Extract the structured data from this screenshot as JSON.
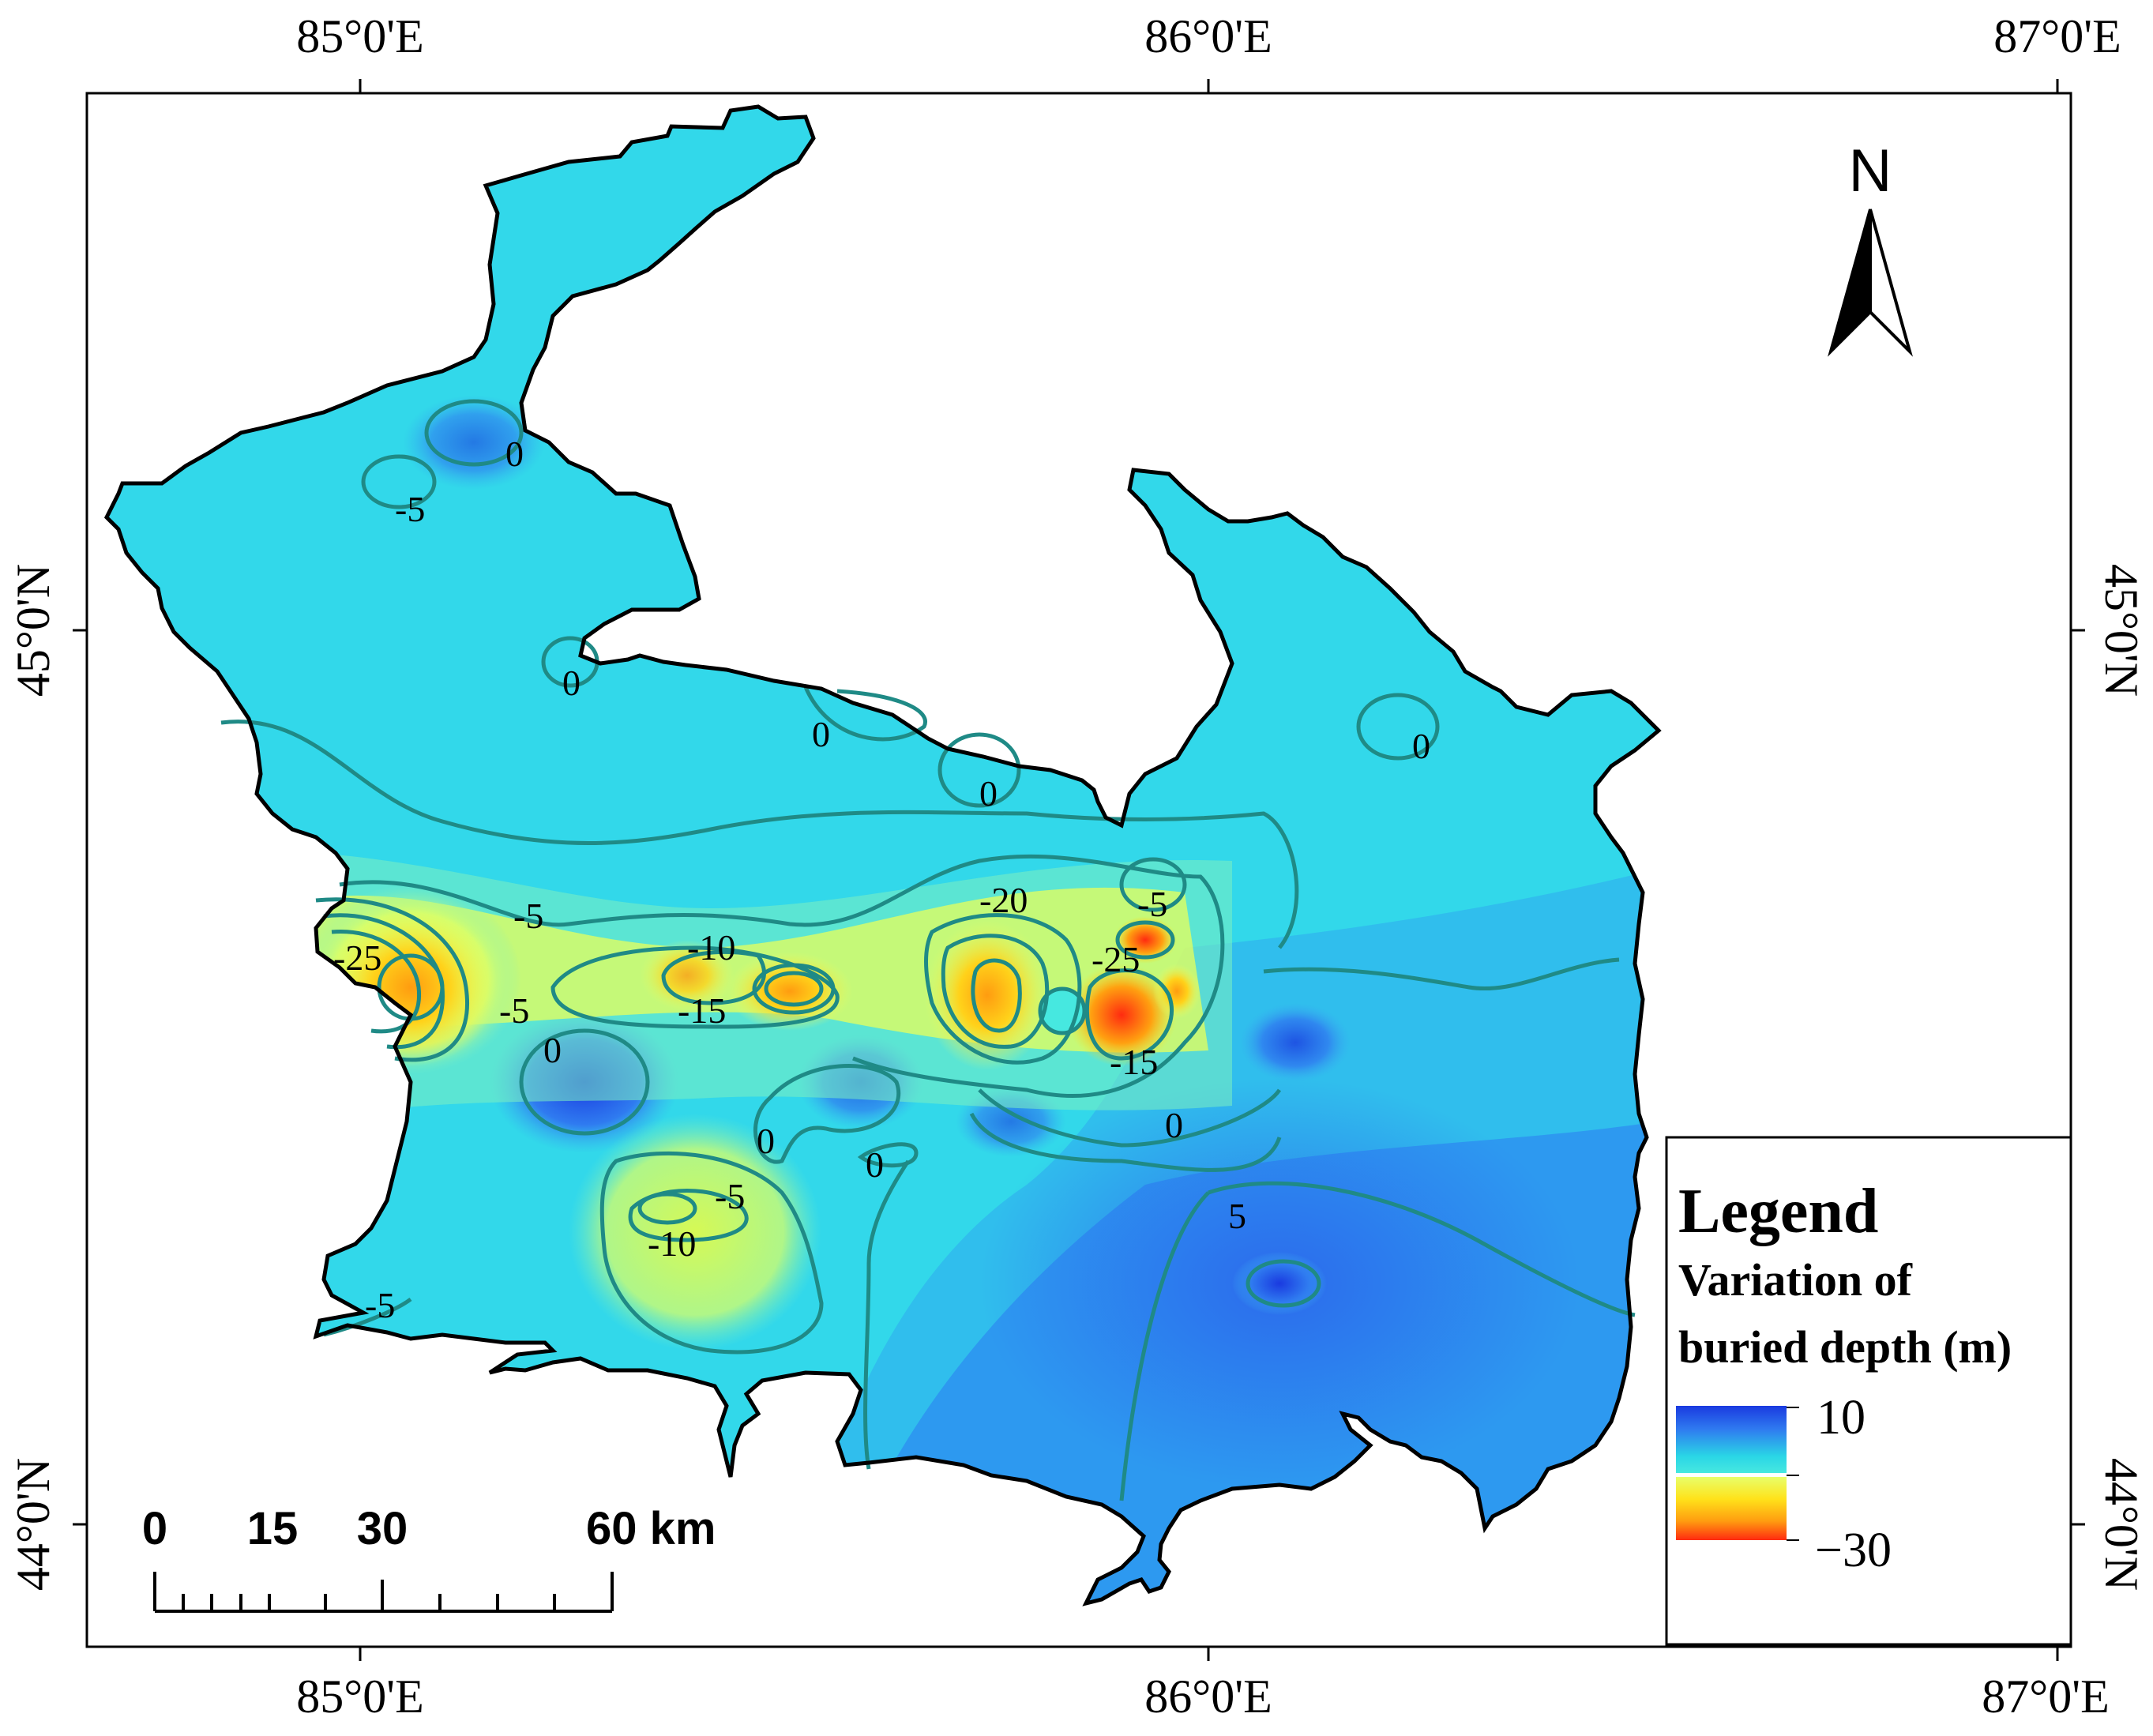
{
  "axes": {
    "top_labels": [
      "85°0'E",
      "86°0'E",
      "87°0'E"
    ],
    "bottom_labels": [
      "85°0'E",
      "86°0'E",
      "87°0'E"
    ],
    "left_labels": [
      "45°0'N",
      "44°0'N"
    ],
    "right_labels": [
      "45°0'N",
      "44°0'N"
    ]
  },
  "contour_labels": [
    "0",
    "-5",
    "0",
    "0",
    "0",
    "0",
    "-5",
    "-25",
    "-10",
    "-15",
    "-20",
    "-5",
    "-25",
    "-5",
    "0",
    "-15",
    "0",
    "0",
    "0",
    "-5",
    "-10",
    "5",
    "-5"
  ],
  "legend": {
    "title": "Legend",
    "subtitle_line1": "Variation of",
    "subtitle_line2": "buried depth (m)",
    "max_label": "10",
    "min_label": "−30",
    "colors": {
      "high": [
        "#1a3ae0",
        "#2f7bf0",
        "#2ad6e6",
        "#46e8e0"
      ],
      "low": [
        "#e8ff6a",
        "#ffe21a",
        "#ff9c10",
        "#ff2b10"
      ]
    }
  },
  "scale_bar": {
    "labels": [
      "0",
      "15",
      "30",
      "60 km"
    ]
  },
  "north_arrow": {
    "label": "N"
  }
}
